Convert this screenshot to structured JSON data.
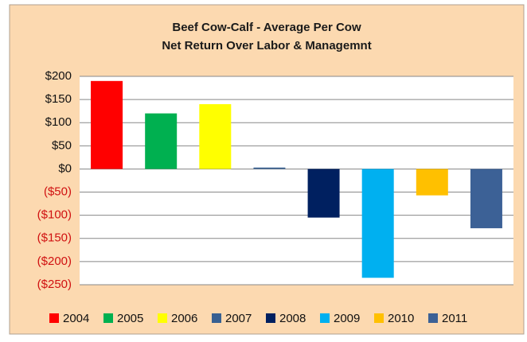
{
  "chart_data": {
    "type": "bar",
    "title": [
      "Beef Cow-Calf  - Average Per Cow",
      "Net Return Over Labor & Managemnt"
    ],
    "categories": [
      "2004",
      "2005",
      "2006",
      "2007",
      "2008",
      "2009",
      "2010",
      "2011"
    ],
    "values": [
      190,
      120,
      140,
      3,
      -105,
      -235,
      -57,
      -128
    ],
    "colors": [
      "#ff0000",
      "#00b050",
      "#ffff00",
      "#376092",
      "#002060",
      "#00b0f0",
      "#ffc000",
      "#3c6196"
    ],
    "ylim": [
      -250,
      200
    ],
    "yticks": [
      {
        "value": -250,
        "label": "($250)"
      },
      {
        "value": -200,
        "label": "($200)"
      },
      {
        "value": -150,
        "label": "($150)"
      },
      {
        "value": -100,
        "label": "($100)"
      },
      {
        "value": -50,
        "label": "($50)"
      },
      {
        "value": 0,
        "label": "$0"
      },
      {
        "value": 50,
        "label": "$50"
      },
      {
        "value": 100,
        "label": "$100"
      },
      {
        "value": 150,
        "label": "$150"
      },
      {
        "value": 200,
        "label": "$200"
      }
    ],
    "grid": true,
    "legend": "bottom"
  }
}
